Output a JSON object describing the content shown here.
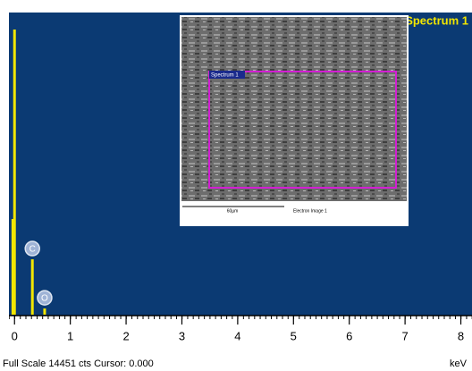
{
  "chart_data": {
    "type": "bar",
    "title": "Spectrum 1",
    "x": [
      -0.03,
      0.0,
      0.32,
      0.54
    ],
    "values": [
      4630,
      13800,
      2680,
      300
    ],
    "point_labels": [
      null,
      null,
      "C",
      "O"
    ],
    "color": "#f2e600",
    "background": "#0b3a73",
    "xlim": [
      -0.1,
      8.2
    ],
    "xticks": [
      0,
      1,
      2,
      3,
      4,
      5,
      6,
      7,
      8
    ],
    "ylim": [
      0,
      14451
    ],
    "xlabel": "keV",
    "status": "Full Scale 14451 cts Cursor: 0.000",
    "inset": {
      "region_label": "Spectrum 1",
      "scale_bar": "60µm",
      "caption": "Electron Image 1"
    }
  }
}
